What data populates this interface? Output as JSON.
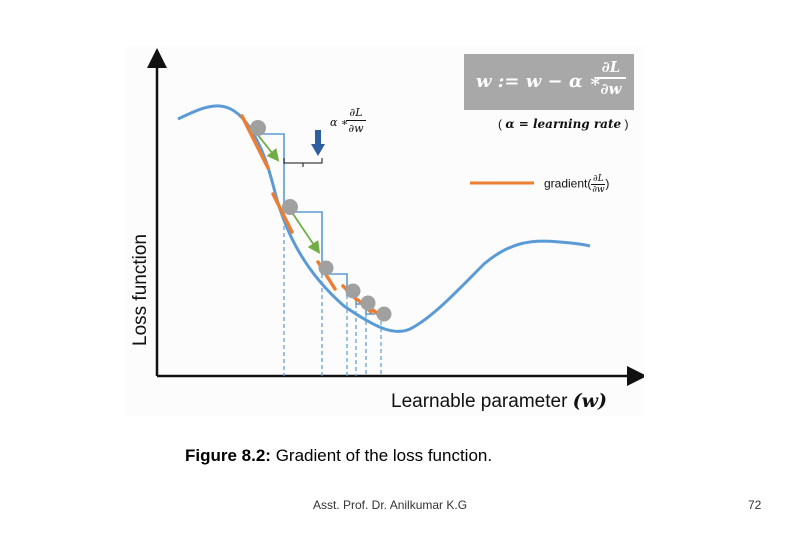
{
  "figure": {
    "y_axis_label": "Loss function",
    "x_axis_label": "Learnable parameter",
    "x_axis_var": "(w)",
    "formula": {
      "lhs": "w := w − α ∗",
      "num": "∂L",
      "den": "∂w"
    },
    "learning_rate_note": {
      "open": "( ",
      "alpha": "α = learning rate",
      "close": " )"
    },
    "step_label": {
      "alpha": "α ∗",
      "num": "∂L",
      "den": "∂w"
    },
    "legend": {
      "label": "gradient",
      "open": "(",
      "num": "∂L",
      "den": "∂w",
      "close": ")"
    },
    "colors": {
      "curve": "#5b9bd5",
      "gradient": "#ed7d31",
      "arrow": "#70ad47",
      "ball": "#a0a0a0",
      "down_arrow": "#2e5f9e",
      "formula_box": "#a8a8a8"
    }
  },
  "caption": {
    "number": "Figure 8.2:",
    "text": " Gradient of the loss function."
  },
  "footer": {
    "author": "Asst. Prof. Dr. Anilkumar K.G",
    "page": "72"
  }
}
